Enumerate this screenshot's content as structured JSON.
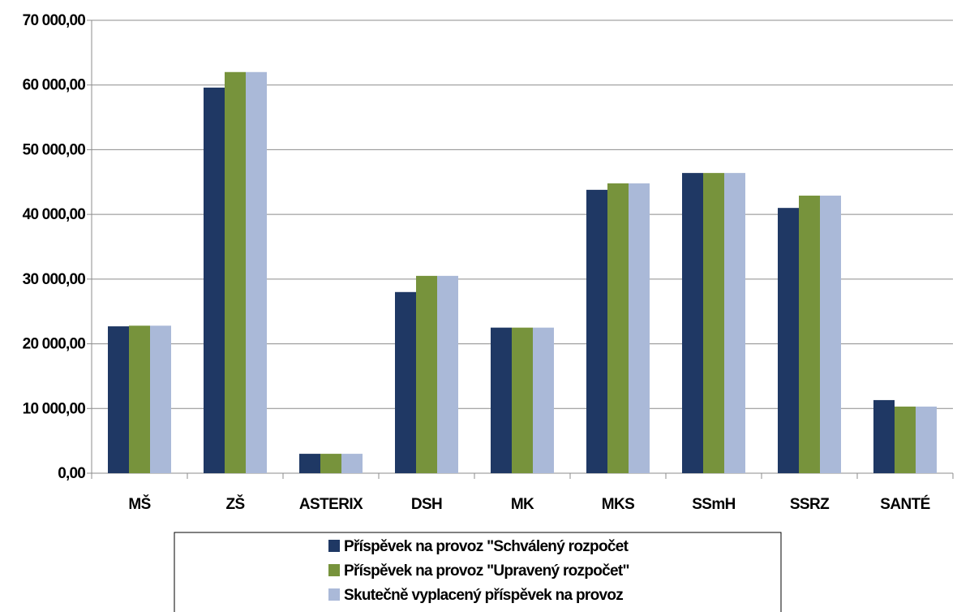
{
  "chart_data": {
    "type": "bar",
    "title": "",
    "xlabel": "",
    "ylabel": "",
    "ylim": [
      0,
      70000
    ],
    "yticks": [
      0,
      10000,
      20000,
      30000,
      40000,
      50000,
      60000,
      70000
    ],
    "ytick_labels": [
      "0,00",
      "10 000,00",
      "20 000,00",
      "30 000,00",
      "40 000,00",
      "50 000,00",
      "60 000,00",
      "70 000,00"
    ],
    "grid": "horizontal",
    "legend_position": "bottom",
    "categories": [
      "MŠ",
      "ZŠ",
      "ASTERIX",
      "DSH",
      "MK",
      "MKS",
      "SSmH",
      "SSRZ",
      "SANTÉ"
    ],
    "series": [
      {
        "name": "Příspěvek na provoz \"Schválený rozpočet",
        "color": "#1f3864",
        "values": [
          22700,
          59600,
          3000,
          28000,
          22500,
          43800,
          46400,
          41000,
          11300
        ]
      },
      {
        "name": "Příspěvek na provoz \"Upravený rozpočet\"",
        "color": "#77933c",
        "values": [
          22800,
          62000,
          3000,
          30500,
          22500,
          44800,
          46400,
          42900,
          10300
        ]
      },
      {
        "name": "Skutečně vyplacený příspěvek na provoz",
        "color": "#aab9d8",
        "values": [
          22800,
          62000,
          3000,
          30500,
          22500,
          44800,
          46400,
          42900,
          10300
        ]
      }
    ]
  }
}
